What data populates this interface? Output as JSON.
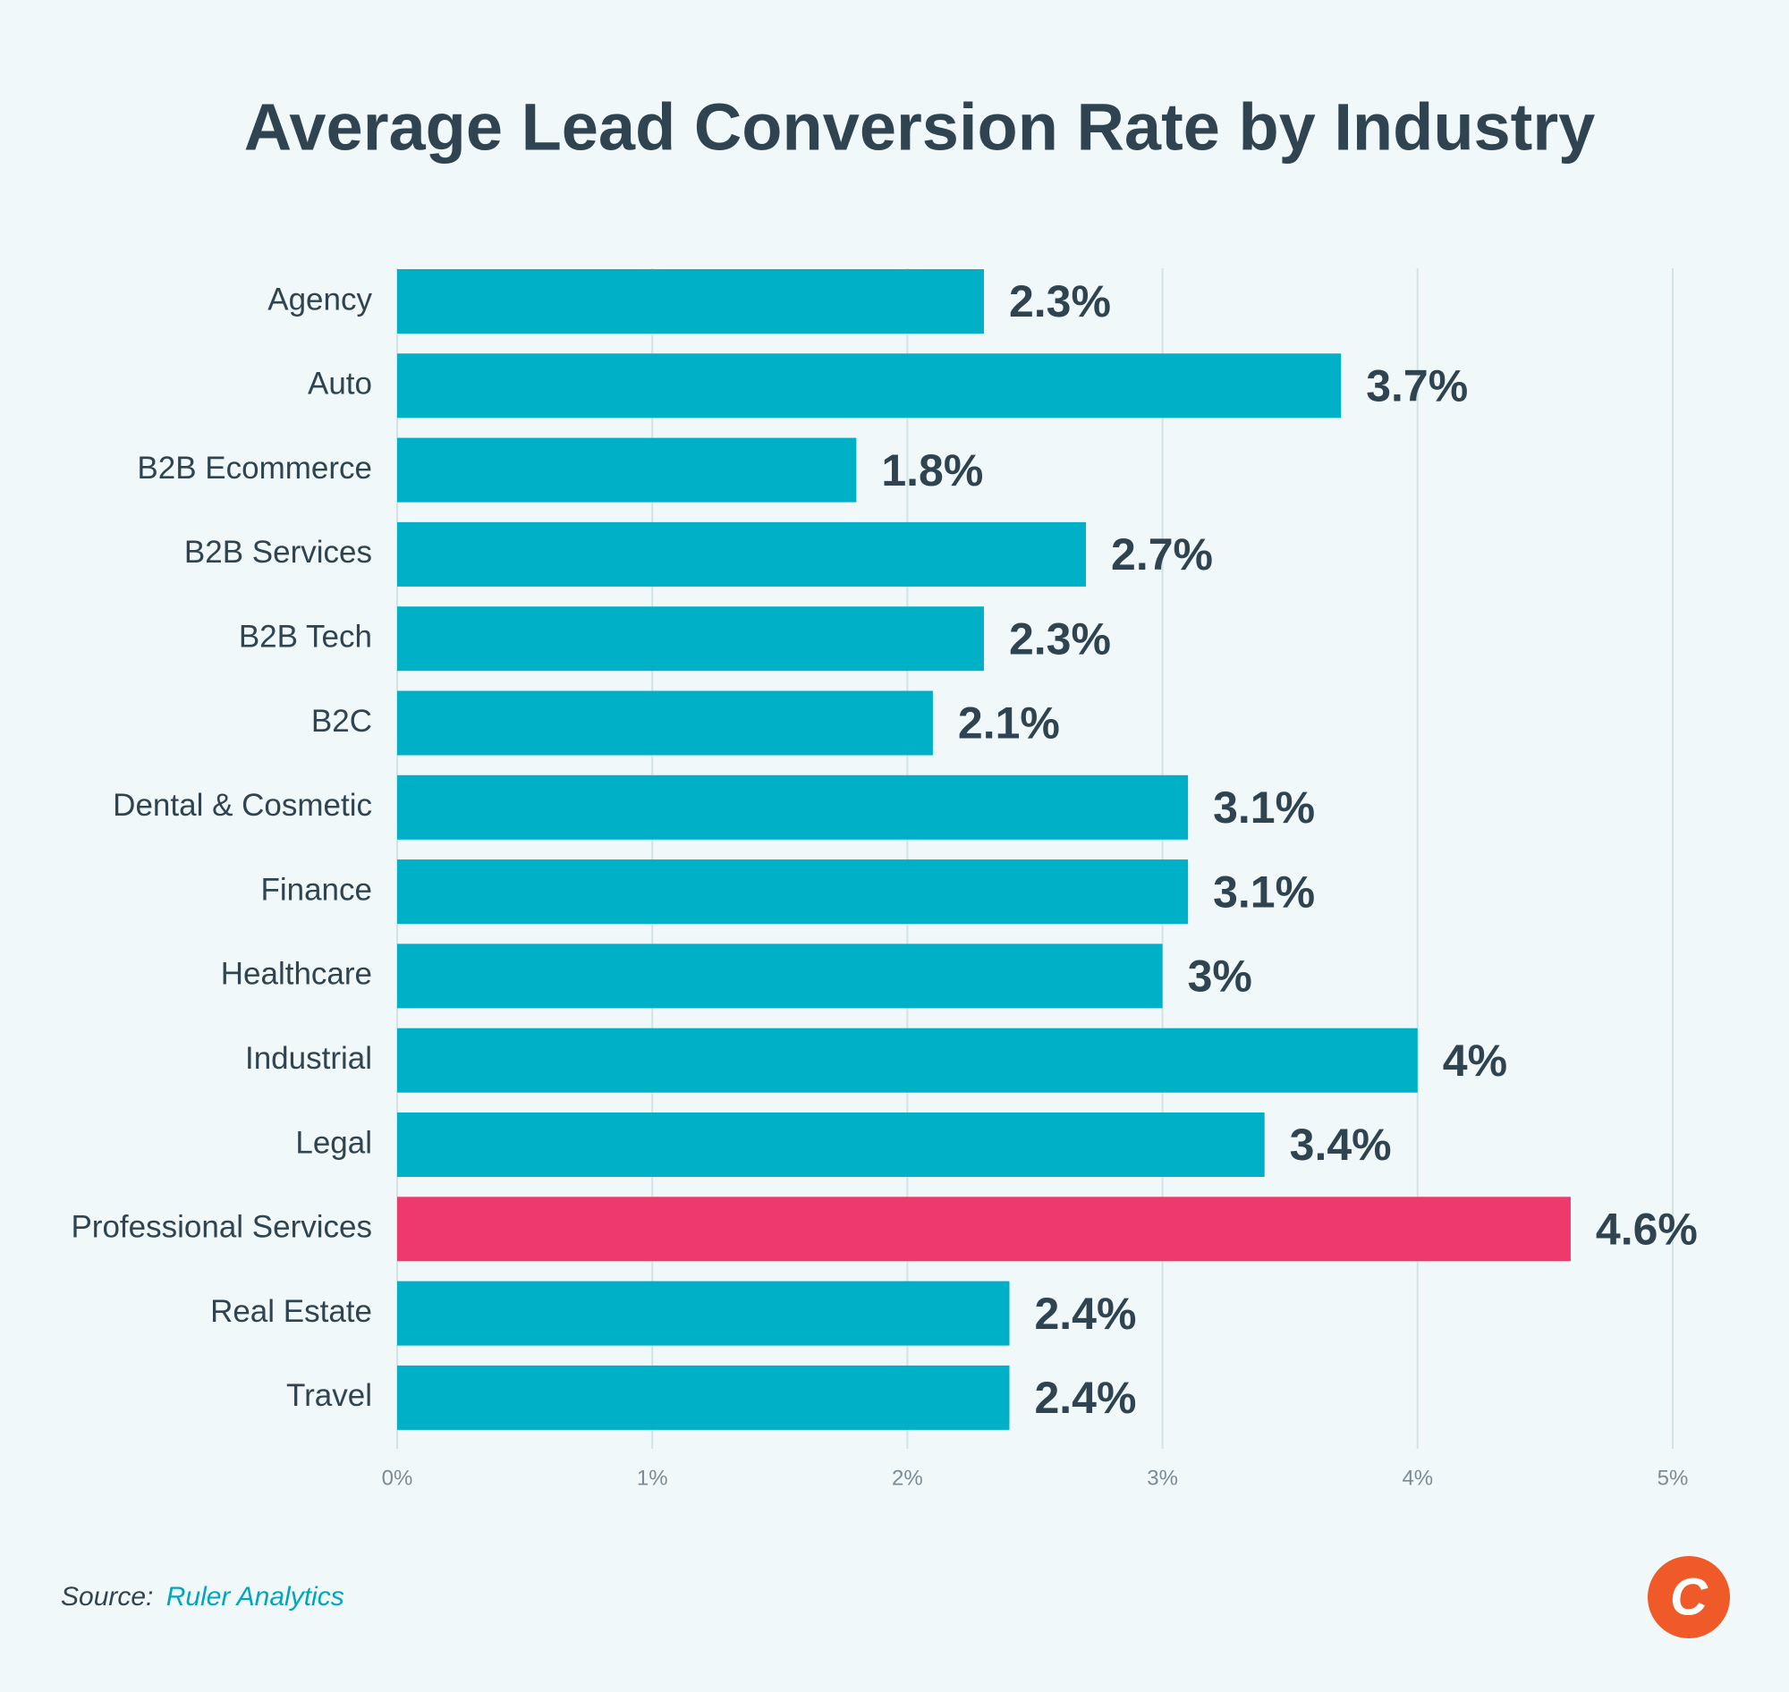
{
  "chart_data": {
    "type": "barh",
    "title": "Average Lead Conversion Rate by Industry",
    "categories": [
      "Agency",
      "Auto",
      "B2B Ecommerce",
      "B2B Services",
      "B2B Tech",
      "B2C",
      "Dental & Cosmetic",
      "Finance",
      "Healthcare",
      "Industrial",
      "Legal",
      "Professional Services",
      "Real Estate",
      "Travel"
    ],
    "values": [
      2.3,
      3.7,
      1.8,
      2.7,
      2.3,
      2.1,
      3.1,
      3.1,
      3,
      4,
      3.4,
      4.6,
      2.4,
      2.4
    ],
    "value_labels": [
      "2.3%",
      "3.7%",
      "1.8%",
      "2.7%",
      "2.3%",
      "2.1%",
      "3.1%",
      "3.1%",
      "3%",
      "4%",
      "3.4%",
      "4.6%",
      "2.4%",
      "2.4%"
    ],
    "colors": [
      "#00b0c6",
      "#00b0c6",
      "#00b0c6",
      "#00b0c6",
      "#00b0c6",
      "#00b0c6",
      "#00b0c6",
      "#00b0c6",
      "#00b0c6",
      "#00b0c6",
      "#00b0c6",
      "#ee396d",
      "#00b0c6",
      "#00b0c6"
    ],
    "xlim": [
      0,
      5
    ],
    "xticks": [
      {
        "value": 0,
        "label": "0%"
      },
      {
        "value": 1,
        "label": "1%"
      },
      {
        "value": 2,
        "label": "2%"
      },
      {
        "value": 3,
        "label": "3%"
      },
      {
        "value": 4,
        "label": "4%"
      },
      {
        "value": 5,
        "label": "5%"
      }
    ],
    "grid": true,
    "source_label": "Source:",
    "source": "Ruler Analytics",
    "logo": "C"
  }
}
